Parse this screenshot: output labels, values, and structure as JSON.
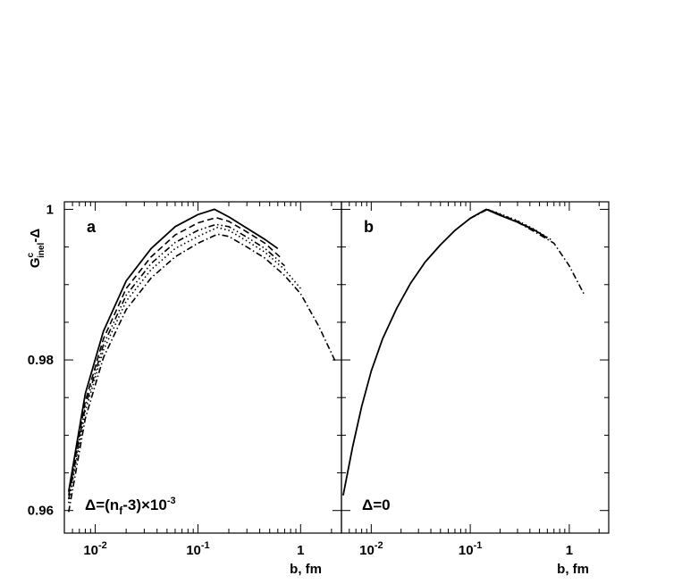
{
  "chart_data": [
    {
      "panel_label": "a",
      "type": "line",
      "annotation": "Δ=(n_f-3)×10⁻³",
      "annotation_parts": [
        "Δ=(n",
        "f",
        "-3)×10",
        "-3"
      ],
      "ylabel_parts": {
        "G": "G",
        "sup": "c",
        "sub": "inel",
        "tail": "-Δ"
      },
      "xlabel": "b, fm",
      "xscale": "log",
      "xlim": [
        0.005,
        2.5
      ],
      "ylim": [
        0.957,
        1.001
      ],
      "x_ticks": [
        0.01,
        0.1,
        1
      ],
      "x_tick_labels": [
        {
          "base": "10",
          "exp": "-2"
        },
        {
          "base": "10",
          "exp": "-1"
        },
        {
          "base": "1",
          "exp": ""
        }
      ],
      "y_ticks": [
        0.96,
        0.98,
        1.0
      ],
      "y_tick_labels": [
        "0.96",
        "0.98",
        "1"
      ],
      "series": [
        {
          "style": "solid",
          "x": [
            0.0055,
            0.008,
            0.012,
            0.02,
            0.035,
            0.06,
            0.1,
            0.145,
            0.2,
            0.3,
            0.45,
            0.6
          ],
          "y": [
            0.9625,
            0.9755,
            0.9838,
            0.9905,
            0.9948,
            0.9977,
            0.9993,
            1.0,
            0.999,
            0.9975,
            0.996,
            0.9948
          ]
        },
        {
          "style": "dashed",
          "x": [
            0.0055,
            0.008,
            0.012,
            0.02,
            0.035,
            0.06,
            0.1,
            0.15,
            0.2,
            0.3,
            0.45,
            0.65
          ],
          "y": [
            0.962,
            0.9745,
            0.9828,
            0.9895,
            0.9937,
            0.9966,
            0.9982,
            0.9989,
            0.9984,
            0.997,
            0.9955,
            0.9935
          ]
        },
        {
          "style": "dash-dot-dot",
          "x": [
            0.0055,
            0.008,
            0.012,
            0.02,
            0.035,
            0.06,
            0.1,
            0.15,
            0.2,
            0.3,
            0.45,
            0.7
          ],
          "y": [
            0.9615,
            0.9738,
            0.982,
            0.9886,
            0.9928,
            0.9956,
            0.9972,
            0.998,
            0.9977,
            0.9963,
            0.9948,
            0.9925
          ]
        },
        {
          "style": "dotted",
          "x": [
            0.0055,
            0.008,
            0.012,
            0.02,
            0.035,
            0.06,
            0.1,
            0.155,
            0.2,
            0.3,
            0.45,
            0.7,
            1.0
          ],
          "y": [
            0.961,
            0.9732,
            0.9813,
            0.9878,
            0.992,
            0.9948,
            0.9964,
            0.9976,
            0.9972,
            0.9958,
            0.9943,
            0.992,
            0.9895
          ]
        },
        {
          "style": "dash-dot",
          "x": [
            0.0055,
            0.008,
            0.012,
            0.02,
            0.035,
            0.06,
            0.1,
            0.155,
            0.2,
            0.3,
            0.45,
            0.7,
            1.0,
            1.5,
            2.2
          ],
          "y": [
            0.9598,
            0.9722,
            0.9803,
            0.9867,
            0.9909,
            0.9937,
            0.9955,
            0.9967,
            0.9964,
            0.995,
            0.9935,
            0.9912,
            0.9888,
            0.9845,
            0.9797
          ]
        }
      ]
    },
    {
      "panel_label": "b",
      "type": "line",
      "annotation": "Δ=0",
      "xlabel": "b, fm",
      "xscale": "log",
      "xlim": [
        0.005,
        2.5
      ],
      "ylim": [
        0.957,
        1.001
      ],
      "x_ticks": [
        0.01,
        0.1,
        1
      ],
      "x_tick_labels": [
        {
          "base": "10",
          "exp": "-2"
        },
        {
          "base": "10",
          "exp": "-1"
        },
        {
          "base": "1",
          "exp": ""
        }
      ],
      "y_ticks": [
        0.96,
        0.98,
        1.0
      ],
      "series": [
        {
          "style": "solid",
          "x": [
            0.0052,
            0.0065,
            0.008,
            0.01,
            0.013,
            0.018,
            0.025,
            0.035,
            0.05,
            0.07,
            0.1,
            0.145,
            0.2,
            0.3,
            0.45,
            0.6
          ],
          "y": [
            0.962,
            0.9685,
            0.9738,
            0.9785,
            0.9828,
            0.9868,
            0.9902,
            0.993,
            0.9953,
            0.9972,
            0.9988,
            1.0,
            0.9992,
            0.9983,
            0.9972,
            0.9962
          ]
        },
        {
          "style": "dashed",
          "x": [
            0.1,
            0.145,
            0.2,
            0.3,
            0.45,
            0.6
          ],
          "y": [
            0.9988,
            1.0,
            0.9993,
            0.9984,
            0.9972,
            0.9962
          ]
        },
        {
          "style": "dotted",
          "x": [
            0.1,
            0.15,
            0.2,
            0.3,
            0.45,
            0.65
          ],
          "y": [
            0.9988,
            1.0,
            0.9994,
            0.9985,
            0.9973,
            0.996
          ]
        },
        {
          "style": "dash-dot",
          "x": [
            0.1,
            0.15,
            0.2,
            0.3,
            0.45,
            0.7,
            1.0,
            1.4
          ],
          "y": [
            0.9988,
            1.0,
            0.9993,
            0.9983,
            0.997,
            0.9955,
            0.9925,
            0.9888
          ]
        }
      ]
    }
  ]
}
